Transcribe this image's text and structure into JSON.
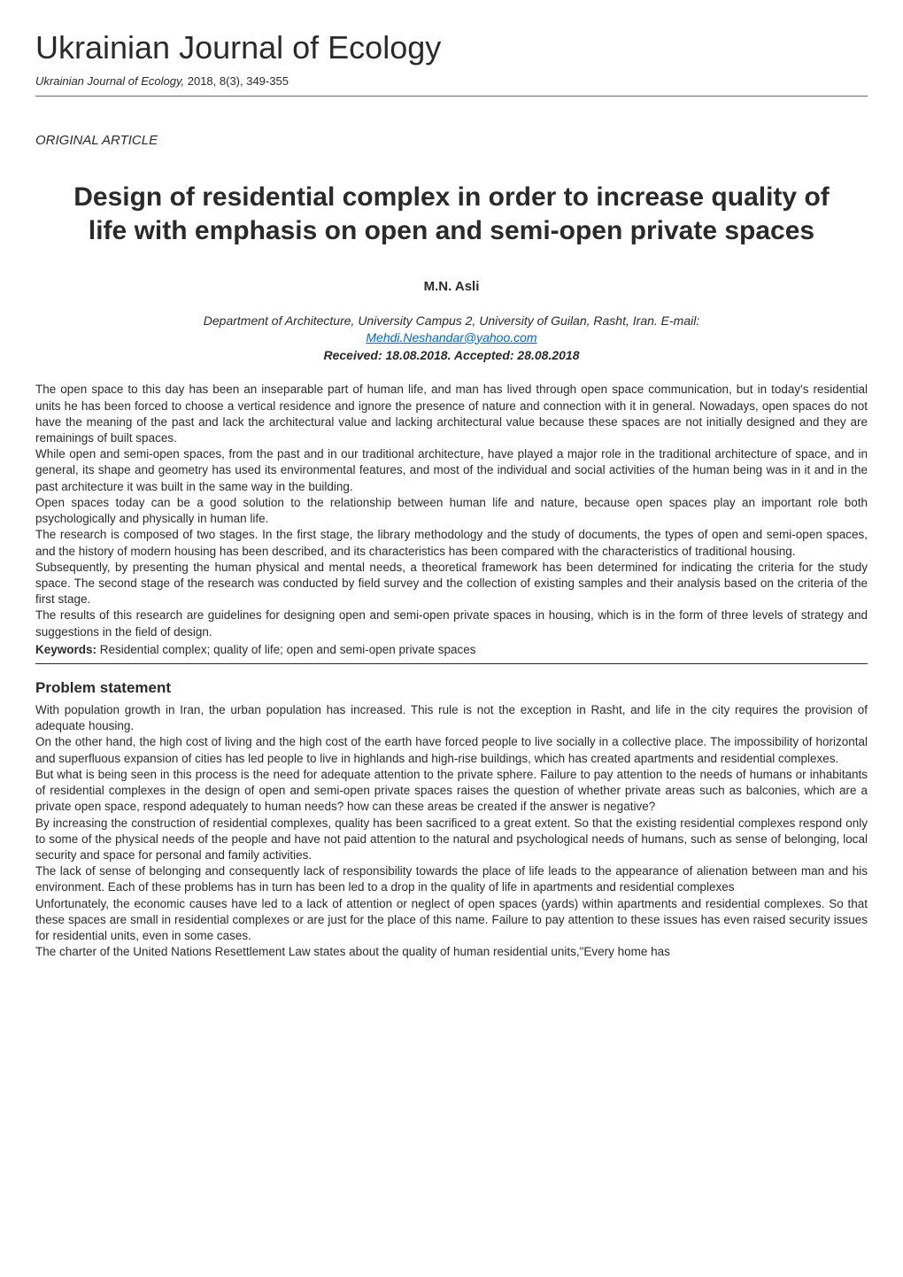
{
  "journal": {
    "title": "Ukrainian Journal of Ecology",
    "meta_prefix": "Ukrainian Journal of Ecology,",
    "meta_year": " 2018, 8(3), 349-355"
  },
  "article_type": "ORIGINAL ARTICLE",
  "title": "Design of residential complex in order to increase quality of life with emphasis on open and semi-open private spaces",
  "author": "M.N. Asli",
  "affiliation": "Department of Architecture, University Campus 2, University of Guilan, Rasht, Iran. E-mail:",
  "email": "Mehdi.Neshandar@yahoo.com",
  "dates": "Received: 18.08.2018. Accepted: 28.08.2018",
  "abstract": {
    "p1": "The open space to this day has been an inseparable part of human life, and man has lived through open space communication, but in today's residential units he has been forced to choose a vertical residence and ignore the presence of nature and connection with it in general. Nowadays, open spaces do not have the meaning of the past and lack the architectural value and lacking architectural value because these spaces are not initially designed and they are remainings of built spaces.",
    "p2": "While open and semi-open spaces, from the past and in our traditional architecture, have played a major role in the traditional architecture of space, and in general, its shape and geometry has used its environmental features, and most of the individual and social activities of the human being was in it and in the past architecture it was built in the same way in the building.",
    "p3": "Open spaces today can be a good solution to the relationship between human life and nature, because open spaces play an important role both psychologically and physically in human life.",
    "p4": "The research is composed of two stages. In the first stage, the library methodology and the study of documents, the types of open and semi-open spaces, and the history of modern housing has been described, and its characteristics has been compared with the characteristics of traditional housing.",
    "p5": "Subsequently, by presenting the human physical and mental needs, a theoretical framework has been determined for indicating the criteria for the study space. The second stage of the research was conducted by field survey and the collection of existing samples and their analysis based on the criteria of the first stage.",
    "p6": "The results of this research are guidelines for designing open and semi-open private spaces in housing, which is in the form of three levels of strategy and suggestions in the field of design."
  },
  "keywords": {
    "label": "Keywords:",
    "text": " Residential complex; quality of life; open and semi-open private spaces"
  },
  "section1": {
    "heading": "Problem statement",
    "p1": "With population growth in Iran, the urban population has increased. This rule is not the exception in Rasht, and life in the city requires the provision of adequate housing.",
    "p2": "On the other hand, the high cost of living and the high cost of the earth have forced people to live socially in a collective place. The impossibility of horizontal and superfluous expansion of cities has led people to live in highlands and high-rise buildings, which has created apartments and residential complexes.",
    "p3": "But what is being seen in this process is the need for adequate attention to the private sphere. Failure to pay attention to the needs of humans or inhabitants of residential complexes in the design of open and semi-open private spaces raises the question of whether private areas such as balconies, which are a private open space, respond adequately to human needs? how can these areas be created if the answer is negative?",
    "p4": "By increasing the construction of residential complexes, quality has been sacrificed to a great extent. So that the existing residential complexes respond only to some of the physical needs of the people and have not paid attention to the natural and psychological needs of humans, such as sense of belonging, local security and space for personal and family activities.",
    "p5": "The lack of sense of belonging and consequently lack of responsibility towards the place of life leads to the appearance of alienation between man and his environment. Each of these problems has in turn has been led to a drop in the quality of life in apartments and residential complexes",
    "p6": "Unfortunately, the economic causes have led to a lack of attention or neglect of open spaces (yards) within apartments and residential complexes. So that these spaces are small in residential complexes or are just for the place of this name. Failure to pay attention to these issues has even raised security issues for residential units, even in some cases.",
    "p7": "The charter of the United Nations Resettlement Law states about the quality of human residential units,\"Every home has"
  },
  "colors": {
    "text": "#2a2a2a",
    "background": "#ffffff",
    "link": "#0066cc",
    "rule_light": "#666666",
    "rule_dark": "#2a2a2a"
  },
  "typography": {
    "journal_title_size": 36,
    "article_title_size": 30,
    "section_heading_size": 17,
    "body_size": 13.5,
    "author_size": 15
  }
}
